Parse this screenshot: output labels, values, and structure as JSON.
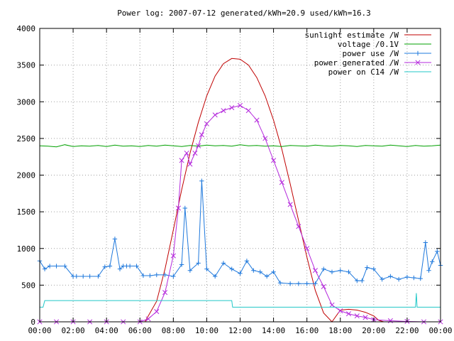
{
  "chart_data": {
    "type": "line",
    "title": "Power log: 2007-07-12 generated/kWh=20.9 used/kWh=16.3",
    "xlabel": "",
    "ylabel": "",
    "xlim": [
      "00:00",
      "24:00"
    ],
    "ylim": [
      0,
      4000
    ],
    "x_ticks": [
      "00:00",
      "02:00",
      "04:00",
      "06:00",
      "08:00",
      "10:00",
      "12:00",
      "14:00",
      "16:00",
      "18:00",
      "20:00",
      "22:00",
      "00:00"
    ],
    "y_ticks": [
      0,
      500,
      1000,
      1500,
      2000,
      2500,
      3000,
      3500,
      4000
    ],
    "grid": true,
    "legend_position": "top-right",
    "series": [
      {
        "name": "sunlight estimate /W",
        "color": "#c00000",
        "marker": "none",
        "x": [
          6.3,
          7.0,
          7.5,
          8.0,
          8.5,
          9.0,
          9.5,
          10.0,
          10.5,
          11.0,
          11.5,
          12.0,
          12.5,
          13.0,
          13.5,
          14.0,
          14.5,
          15.0,
          15.5,
          16.0,
          16.5,
          17.0,
          17.5,
          18.0,
          18.5,
          19.0,
          19.5,
          20.0,
          20.3,
          20.6
        ],
        "y": [
          0,
          280,
          720,
          1250,
          1800,
          2300,
          2720,
          3080,
          3350,
          3520,
          3590,
          3580,
          3500,
          3330,
          3080,
          2750,
          2350,
          1880,
          1380,
          880,
          430,
          120,
          0,
          160,
          170,
          160,
          130,
          80,
          20,
          0
        ]
      },
      {
        "name": "voltage /0.1V",
        "color": "#00a000",
        "marker": "none",
        "x": [
          0,
          0.5,
          1.0,
          1.5,
          2.0,
          2.5,
          3.0,
          3.5,
          4.0,
          4.5,
          5.0,
          5.5,
          6.0,
          6.5,
          7.0,
          7.5,
          8.0,
          8.5,
          9.0,
          9.5,
          10.0,
          10.5,
          11.0,
          11.5,
          12.0,
          12.5,
          13.0,
          13.5,
          14.0,
          14.5,
          15.0,
          15.5,
          16.0,
          16.5,
          17.0,
          17.5,
          18.0,
          18.5,
          19.0,
          19.5,
          20.0,
          20.5,
          21.0,
          21.5,
          22.0,
          22.5,
          23.0,
          23.5,
          24.0
        ],
        "y": [
          2400,
          2395,
          2385,
          2415,
          2390,
          2400,
          2395,
          2405,
          2390,
          2410,
          2395,
          2400,
          2390,
          2405,
          2395,
          2410,
          2400,
          2390,
          2405,
          2395,
          2410,
          2400,
          2405,
          2395,
          2415,
          2400,
          2405,
          2395,
          2400,
          2390,
          2405,
          2400,
          2395,
          2410,
          2400,
          2395,
          2405,
          2400,
          2390,
          2405,
          2400,
          2395,
          2410,
          2400,
          2390,
          2405,
          2395,
          2400,
          2410
        ]
      },
      {
        "name": "power use /W",
        "color": "#1e78dc",
        "marker": "plus",
        "x": [
          0,
          0.3,
          0.6,
          1.0,
          1.5,
          2.0,
          2.2,
          2.6,
          3.0,
          3.5,
          3.9,
          4.2,
          4.5,
          4.8,
          5.0,
          5.2,
          5.4,
          5.8,
          6.2,
          6.6,
          7.0,
          7.5,
          8.0,
          8.5,
          8.7,
          9.0,
          9.5,
          9.7,
          10.0,
          10.5,
          11.0,
          11.5,
          12.0,
          12.4,
          12.8,
          13.2,
          13.6,
          14.0,
          14.4,
          15.0,
          15.5,
          16.0,
          16.5,
          17.0,
          17.5,
          18.0,
          18.5,
          19.0,
          19.3,
          19.6,
          20.0,
          20.5,
          21.0,
          21.5,
          22.0,
          22.4,
          22.8,
          23.1,
          23.3,
          23.5,
          23.8,
          24.0
        ],
        "y": [
          830,
          720,
          760,
          760,
          760,
          620,
          620,
          620,
          620,
          620,
          750,
          760,
          1130,
          720,
          760,
          760,
          760,
          760,
          630,
          630,
          640,
          640,
          620,
          780,
          1550,
          700,
          800,
          1920,
          720,
          620,
          800,
          720,
          660,
          830,
          700,
          680,
          620,
          680,
          530,
          520,
          520,
          520,
          520,
          720,
          680,
          700,
          680,
          560,
          560,
          740,
          720,
          580,
          620,
          580,
          610,
          600,
          590,
          1080,
          700,
          820,
          960,
          770
        ]
      },
      {
        "name": "power generated /W",
        "color": "#b428dc",
        "marker": "cross",
        "x": [
          0,
          1.0,
          2.0,
          3.0,
          4.0,
          5.0,
          6.0,
          6.5,
          7.0,
          7.5,
          8.0,
          8.3,
          8.5,
          8.8,
          9.0,
          9.3,
          9.5,
          9.7,
          10.0,
          10.5,
          11.0,
          11.5,
          12.0,
          12.5,
          13.0,
          13.5,
          14.0,
          14.5,
          15.0,
          15.5,
          16.0,
          16.5,
          17.0,
          17.5,
          18.0,
          18.5,
          19.0,
          19.5,
          20.0,
          21.0,
          22.0,
          23.0,
          24.0
        ],
        "y": [
          0,
          0,
          0,
          0,
          0,
          0,
          0,
          40,
          140,
          400,
          900,
          1550,
          2200,
          2300,
          2150,
          2300,
          2400,
          2550,
          2700,
          2820,
          2880,
          2920,
          2950,
          2880,
          2750,
          2500,
          2200,
          1900,
          1600,
          1300,
          1000,
          700,
          480,
          230,
          150,
          110,
          80,
          60,
          30,
          15,
          5,
          0,
          0
        ]
      },
      {
        "name": "power on C14 /W",
        "color": "#20c8c8",
        "marker": "none",
        "x": [
          0,
          0.2,
          0.3,
          1.0,
          3.0,
          6.0,
          9.0,
          11.5,
          11.55,
          14.0,
          17.0,
          20.0,
          22.5,
          22.55,
          22.6,
          24.0
        ],
        "y": [
          200,
          200,
          290,
          290,
          290,
          290,
          290,
          290,
          200,
          200,
          200,
          200,
          200,
          390,
          200,
          200
        ]
      }
    ]
  }
}
